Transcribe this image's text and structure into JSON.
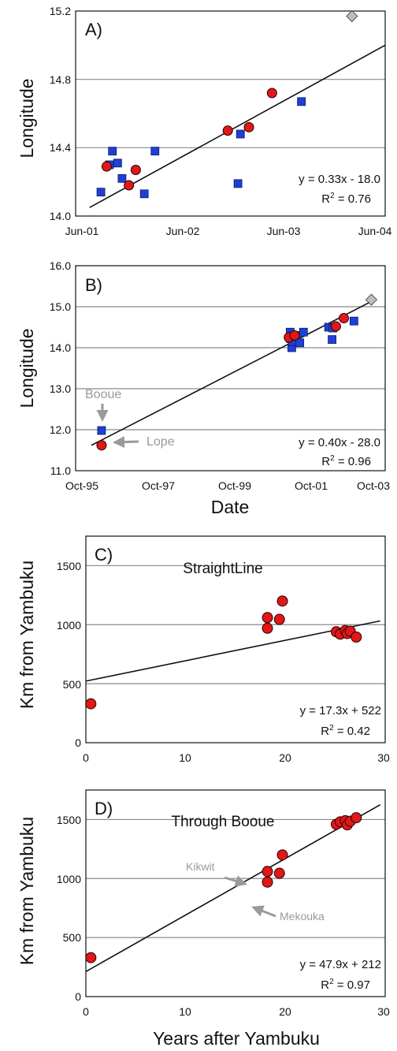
{
  "chart_data": [
    {
      "panel": "A)",
      "type": "scatter",
      "title": "",
      "xlabel": "",
      "ylabel": "Longitude",
      "ylim": [
        14.0,
        15.2
      ],
      "y_ticks": [
        "14.0",
        "14.4",
        "14.8",
        "15.2"
      ],
      "x_ticks": [
        "Jun-01",
        "Jun-02",
        "Jun-03",
        "Jun-04"
      ],
      "grid": "horizontal",
      "series": [
        {
          "marker": "square",
          "color": "#1f3fd6",
          "points": [
            [
              "2001-08-20",
              14.14
            ],
            [
              "2001-09-20",
              14.3
            ],
            [
              "2001-10-01",
              14.38
            ],
            [
              "2001-10-20",
              14.31
            ],
            [
              "2001-11-05",
              14.22
            ],
            [
              "2002-01-25",
              14.13
            ],
            [
              "2002-03-05",
              14.38
            ],
            [
              "2003-01-01",
              14.19
            ],
            [
              "2003-01-10",
              14.48
            ],
            [
              "2003-08-20",
              14.67
            ]
          ]
        },
        {
          "marker": "circle",
          "color": "#e01818",
          "points": [
            [
              "2001-09-10",
              14.29
            ],
            [
              "2001-11-30",
              14.18
            ],
            [
              "2001-12-25",
              14.27
            ],
            [
              "2002-11-25",
              14.5
            ],
            [
              "2003-02-10",
              14.52
            ],
            [
              "2003-05-05",
              14.72
            ]
          ]
        },
        {
          "marker": "diamond",
          "color": "#bdbdbd",
          "points": [
            [
              "2004-02-20",
              15.17
            ]
          ]
        }
      ],
      "trendline": {
        "x": [
          "2001-07-10",
          "2004-06-20"
        ],
        "y": [
          14.05,
          15.0
        ]
      },
      "equation": "y = 0.33x - 18.0",
      "r2": "R² = 0.76",
      "r2_base": "R",
      "r2_exp": "2",
      "r2_rest": " = 0.76"
    },
    {
      "panel": "B)",
      "type": "scatter",
      "title": "",
      "xlabel": "Date",
      "ylabel": "Longitude",
      "ylim": [
        11.0,
        16.0
      ],
      "y_ticks": [
        "11.0",
        "12.0",
        "13.0",
        "14.0",
        "15.0",
        "16.0"
      ],
      "x_ticks": [
        "Oct-95",
        "Oct-97",
        "Oct-99",
        "Oct-01",
        "Oct-03"
      ],
      "grid": "horizontal",
      "series": [
        {
          "marker": "square",
          "color": "#1f3fd6",
          "points": [
            [
              "1996-05-01",
              11.98
            ],
            [
              "2001-10-15",
              14.38
            ],
            [
              "2001-10-20",
              14.22
            ],
            [
              "2001-11-01",
              14.0
            ],
            [
              "2001-11-10",
              14.15
            ],
            [
              "2001-12-20",
              14.3
            ],
            [
              "2002-01-25",
              14.12
            ],
            [
              "2002-03-05",
              14.38
            ],
            [
              "2002-11-25",
              14.5
            ],
            [
              "2003-01-01",
              14.2
            ],
            [
              "2003-01-10",
              14.48
            ],
            [
              "2003-08-20",
              14.65
            ]
          ]
        },
        {
          "marker": "circle",
          "color": "#e01818",
          "points": [
            [
              "1996-05-01",
              11.62
            ],
            [
              "2001-10-01",
              14.25
            ],
            [
              "2001-11-30",
              14.3
            ],
            [
              "2003-02-10",
              14.52
            ],
            [
              "2003-05-05",
              14.72
            ]
          ]
        },
        {
          "marker": "diamond",
          "color": "#bdbdbd",
          "points": [
            [
              "2004-02-20",
              15.17
            ]
          ]
        }
      ],
      "trendline": {
        "x": [
          "1996-01-15",
          "2004-03-10"
        ],
        "y": [
          11.62,
          15.15
        ]
      },
      "equation": "y = 0.40x - 28.0",
      "r2": "R² = 0.96",
      "r2_base": "R",
      "r2_exp": "2",
      "r2_rest": " = 0.96",
      "annotations": [
        "Booue",
        "Lope"
      ]
    },
    {
      "panel": "C)",
      "type": "scatter",
      "title": "StraightLine",
      "xlabel": "",
      "ylabel": "Km from Yambuku",
      "xlim": [
        0,
        30
      ],
      "ylim": [
        0,
        1750
      ],
      "x_ticks": [
        "0",
        "10",
        "20",
        "30"
      ],
      "y_ticks": [
        "0",
        "500",
        "1000",
        "1500"
      ],
      "grid": "horizontal",
      "series": [
        {
          "marker": "circle",
          "color": "#e01818",
          "points": [
            [
              0.5,
              330
            ],
            [
              18.2,
              1060
            ],
            [
              18.2,
              970
            ],
            [
              19.4,
              1045
            ],
            [
              19.7,
              1200
            ],
            [
              25.1,
              940
            ],
            [
              25.5,
              920
            ],
            [
              26.0,
              950
            ],
            [
              26.2,
              925
            ],
            [
              26.5,
              945
            ],
            [
              27.1,
              895
            ]
          ]
        }
      ],
      "trendline": {
        "x": [
          0,
          29.5
        ],
        "y": [
          522,
          1032
        ]
      },
      "equation": "y = 17.3x + 522",
      "r2": "R² = 0.42",
      "r2_base": "R",
      "r2_exp": "2",
      "r2_rest": " = 0.42"
    },
    {
      "panel": "D)",
      "type": "scatter",
      "title": "Through Booue",
      "xlabel": "Years after Yambuku",
      "ylabel": "Km from Yambuku",
      "xlim": [
        0,
        30
      ],
      "ylim": [
        0,
        1750
      ],
      "x_ticks": [
        "0",
        "10",
        "20",
        "30"
      ],
      "y_ticks": [
        "0",
        "500",
        "1000",
        "1500"
      ],
      "grid": "horizontal",
      "series": [
        {
          "marker": "circle",
          "color": "#e01818",
          "points": [
            [
              0.5,
              330
            ],
            [
              18.2,
              1060
            ],
            [
              18.2,
              970
            ],
            [
              19.4,
              1045
            ],
            [
              19.7,
              1200
            ],
            [
              25.1,
              1460
            ],
            [
              25.5,
              1480
            ],
            [
              26.0,
              1490
            ],
            [
              26.2,
              1455
            ],
            [
              26.5,
              1485
            ],
            [
              27.1,
              1515
            ]
          ]
        }
      ],
      "trendline": {
        "x": [
          0,
          29.5
        ],
        "y": [
          212,
          1625
        ]
      },
      "equation": "y = 47.9x + 212",
      "r2": "R² = 0.97",
      "r2_base": "R",
      "r2_exp": "2",
      "r2_rest": " = 0.97",
      "annotations": [
        "Kikwit",
        "Mekouka"
      ]
    }
  ]
}
